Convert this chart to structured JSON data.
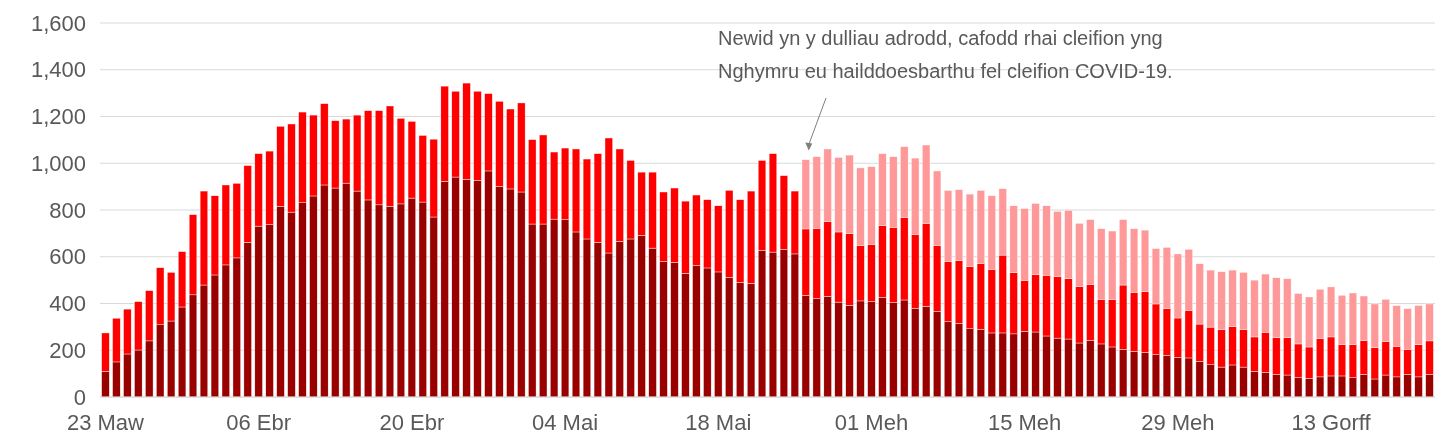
{
  "chart_data": {
    "type": "bar",
    "stacked": true,
    "grid": "y",
    "categories": [
      "23 Maw",
      null,
      null,
      null,
      null,
      null,
      null,
      null,
      null,
      null,
      null,
      null,
      null,
      null,
      "06 Ebr",
      null,
      null,
      null,
      null,
      null,
      null,
      null,
      null,
      null,
      null,
      null,
      null,
      null,
      "20 Ebr",
      null,
      null,
      null,
      null,
      null,
      null,
      null,
      null,
      null,
      null,
      null,
      null,
      null,
      "04 Mai",
      null,
      null,
      null,
      null,
      null,
      null,
      null,
      null,
      null,
      null,
      null,
      null,
      null,
      "18 Mai",
      null,
      null,
      null,
      null,
      null,
      null,
      null,
      null,
      null,
      null,
      null,
      null,
      null,
      "01 Meh",
      null,
      null,
      null,
      null,
      null,
      null,
      null,
      null,
      null,
      null,
      null,
      null,
      null,
      "15 Meh",
      null,
      null,
      null,
      null,
      null,
      null,
      null,
      null,
      null,
      null,
      null,
      null,
      null,
      "29 Meh",
      null,
      null,
      null,
      null,
      null,
      null,
      null,
      null,
      null,
      null,
      null,
      null,
      null,
      "13 Gorff",
      null,
      null,
      null,
      null,
      null,
      null,
      null,
      null,
      null
    ],
    "ylim": [
      0,
      1600
    ],
    "yticks": [
      0,
      200,
      400,
      600,
      800,
      {
        "value": 1000,
        "label": "1,000"
      },
      {
        "value": 1200,
        "label": "1,200"
      },
      {
        "value": 1400,
        "label": "1,400"
      },
      {
        "value": 1600,
        "label": "1,600"
      }
    ],
    "annotations": [
      "Newid yn y dulliau adrodd, cafodd rhai cleifion yng Nghymru eu hailddoesbarthu fel cleifion COVID-19."
    ],
    "series": [
      {
        "color": "#990000",
        "values": [
          110,
          150,
          184,
          201,
          240,
          309,
          325,
          385,
          437,
          479,
          522,
          565,
          595,
          662,
          731,
          737,
          816,
          791,
          831,
          860,
          907,
          894,
          915,
          881,
          843,
          822,
          816,
          826,
          851,
          834,
          770,
          923,
          941,
          931,
          927,
          967,
          901,
          890,
          877,
          740,
          740,
          761,
          759,
          706,
          676,
          662,
          616,
          666,
          676,
          692,
          637,
          579,
          576,
          529,
          562,
          552,
          535,
          512,
          491,
          486,
          627,
          620,
          632,
          612,
          435,
          421,
          431,
          406,
          392,
          411,
          408,
          427,
          404,
          415,
          380,
          388,
          366,
          322,
          315,
          292,
          289,
          274,
          274,
          270,
          281,
          278,
          261,
          252,
          248,
          231,
          242,
          227,
          214,
          204,
          195,
          191,
          181,
          178,
          170,
          167,
          153,
          138,
          128,
          137,
          128,
          110,
          106,
          96,
          94,
          83,
          80,
          86,
          90,
          90,
          83,
          97,
          77,
          94,
          86,
          97,
          86,
          97
        ]
      },
      {
        "color": "#ff0000",
        "values": [
          164,
          187,
          192,
          207,
          215,
          244,
          208,
          237,
          343,
          402,
          339,
          342,
          319,
          328,
          310,
          315,
          342,
          377,
          388,
          346,
          348,
          288,
          274,
          325,
          382,
          403,
          429,
          366,
          328,
          285,
          333,
          407,
          367,
          412,
          381,
          331,
          364,
          342,
          381,
          361,
          381,
          287,
          306,
          355,
          342,
          379,
          492,
          395,
          336,
          270,
          325,
          298,
          318,
          309,
          302,
          292,
          283,
          372,
          353,
          395,
          385,
          421,
          315,
          269,
          284,
          301,
          320,
          300,
          308,
          238,
          245,
          306,
          322,
          354,
          316,
          355,
          283,
          258,
          268,
          266,
          283,
          272,
          333,
          262,
          218,
          245,
          260,
          264,
          258,
          242,
          240,
          191,
          204,
          275,
          253,
          260,
          217,
          201,
          168,
          204,
          159,
          161,
          161,
          164,
          161,
          147,
          171,
          158,
          160,
          144,
          134,
          165,
          167,
          134,
          141,
          144,
          134,
          144,
          131,
          107,
          138,
          143
        ]
      },
      {
        "color": "#ff9999",
        "values": [
          null,
          null,
          null,
          null,
          null,
          null,
          null,
          null,
          null,
          null,
          null,
          null,
          null,
          null,
          null,
          null,
          null,
          null,
          null,
          null,
          null,
          null,
          null,
          null,
          null,
          null,
          null,
          null,
          null,
          null,
          null,
          null,
          null,
          null,
          null,
          null,
          null,
          null,
          null,
          null,
          null,
          null,
          null,
          null,
          null,
          null,
          null,
          null,
          null,
          null,
          null,
          null,
          null,
          null,
          null,
          null,
          null,
          null,
          null,
          null,
          null,
          null,
          null,
          null,
          296,
          306,
          310,
          319,
          335,
          331,
          332,
          308,
          302,
          302,
          326,
          335,
          318,
          304,
          304,
          310,
          312,
          315,
          284,
          286,
          307,
          305,
          297,
          278,
          293,
          270,
          277,
          302,
          292,
          280,
          272,
          263,
          237,
          261,
          274,
          261,
          258,
          244,
          247,
          242,
          244,
          243,
          249,
          256,
          252,
          216,
          214,
          210,
          214,
          211,
          221,
          191,
          187,
          180,
          174,
          174,
          167,
          158
        ]
      }
    ]
  }
}
